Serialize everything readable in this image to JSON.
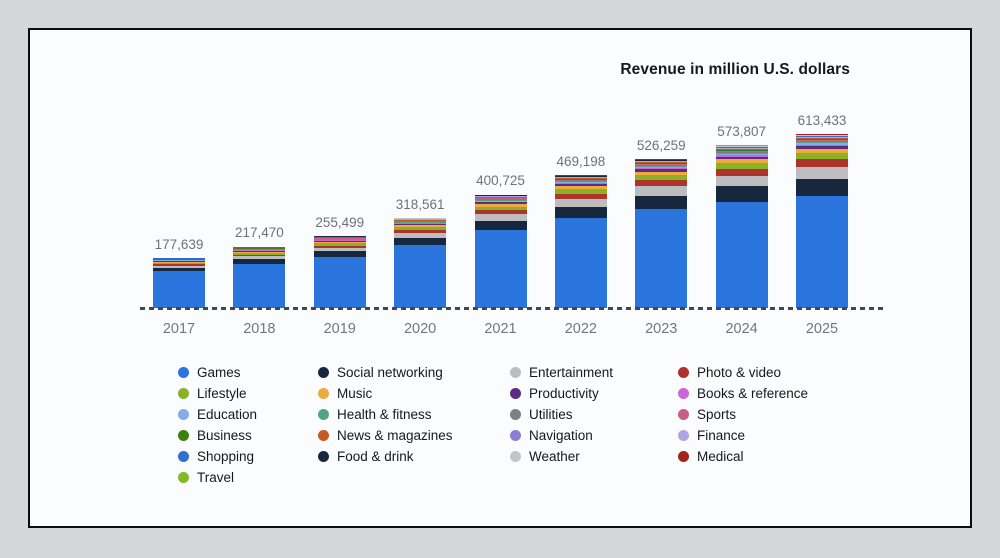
{
  "chart_data": {
    "type": "bar",
    "stacked": true,
    "title": "Revenue in million U.S. dollars",
    "xlabel": "",
    "ylabel": "Revenue in million U.S. dollars",
    "grid": false,
    "legend_position": "bottom",
    "categories": [
      "2017",
      "2018",
      "2019",
      "2020",
      "2021",
      "2022",
      "2023",
      "2024",
      "2025"
    ],
    "totals": [
      177639,
      217470,
      255499,
      318561,
      400725,
      469198,
      526259,
      573807,
      613433
    ],
    "total_labels": [
      "177,639",
      "217,470",
      "255,499",
      "318,561",
      "400,725",
      "469,198",
      "526,259",
      "573,807",
      "613,433"
    ],
    "ylim": [
      0,
      650000
    ],
    "estimation_note": "Per-segment values are not labeled in the chart; share_2017/share_2025 are percentages of the yearly total estimated from segment pixel heights and linearly interpolated per year.",
    "series": [
      {
        "name": "Games",
        "color": "#2a74dd",
        "share_2017": 73.0,
        "share_2025": 64.3
      },
      {
        "name": "Social networking",
        "color": "#17283e",
        "share_2017": 6.5,
        "share_2025": 9.7
      },
      {
        "name": "Entertainment",
        "color": "#bcbdbf",
        "share_2017": 4.5,
        "share_2025": 6.8
      },
      {
        "name": "Photo & video",
        "color": "#ad332d",
        "share_2017": 2.5,
        "share_2025": 4.8
      },
      {
        "name": "Lifestyle",
        "color": "#8ab224",
        "share_2017": 3.0,
        "share_2025": 3.3
      },
      {
        "name": "Music",
        "color": "#edab3c",
        "share_2017": 2.2,
        "share_2025": 2.5
      },
      {
        "name": "Productivity",
        "color": "#5c2b83",
        "share_2017": 1.2,
        "share_2025": 1.5
      },
      {
        "name": "Books & reference",
        "color": "#cf63dc",
        "share_2017": 0.8,
        "share_2025": 0.9
      },
      {
        "name": "Education",
        "color": "#85ace5",
        "share_2017": 0.8,
        "share_2025": 0.8
      },
      {
        "name": "Health & fitness",
        "color": "#55a184",
        "share_2017": 0.7,
        "share_2025": 0.8
      },
      {
        "name": "Utilities",
        "color": "#7c7f83",
        "share_2017": 0.6,
        "share_2025": 0.6
      },
      {
        "name": "Sports",
        "color": "#c75f84",
        "share_2017": 0.6,
        "share_2025": 0.6
      },
      {
        "name": "Business",
        "color": "#3c8010",
        "share_2017": 0.5,
        "share_2025": 0.5
      },
      {
        "name": "News & magazines",
        "color": "#c45a21",
        "share_2017": 0.5,
        "share_2025": 0.5
      },
      {
        "name": "Navigation",
        "color": "#8a7fd2",
        "share_2017": 0.5,
        "share_2025": 0.4
      },
      {
        "name": "Finance",
        "color": "#b3a3e3",
        "share_2017": 0.4,
        "share_2025": 0.4
      },
      {
        "name": "Shopping",
        "color": "#2e6fd0",
        "share_2017": 0.4,
        "share_2025": 0.4
      },
      {
        "name": "Food & drink",
        "color": "#17283e",
        "share_2017": 0.4,
        "share_2025": 0.4
      },
      {
        "name": "Weather",
        "color": "#c3c4c6",
        "share_2017": 0.3,
        "share_2025": 0.3
      },
      {
        "name": "Medical",
        "color": "#a2241c",
        "share_2017": 0.3,
        "share_2025": 0.3
      },
      {
        "name": "Travel",
        "color": "#83b928",
        "share_2017": 0.3,
        "share_2025": 0.2
      }
    ]
  },
  "colors": {
    "page_background": "#d3d7da",
    "card_background": "#fbfcfd",
    "card_border": "#0c0c0c",
    "title_text": "#15181c",
    "value_label_text": "#6e7277",
    "axis_label_text": "#73777c",
    "baseline_dash": "#43474d",
    "legend_text": "#15181c"
  }
}
